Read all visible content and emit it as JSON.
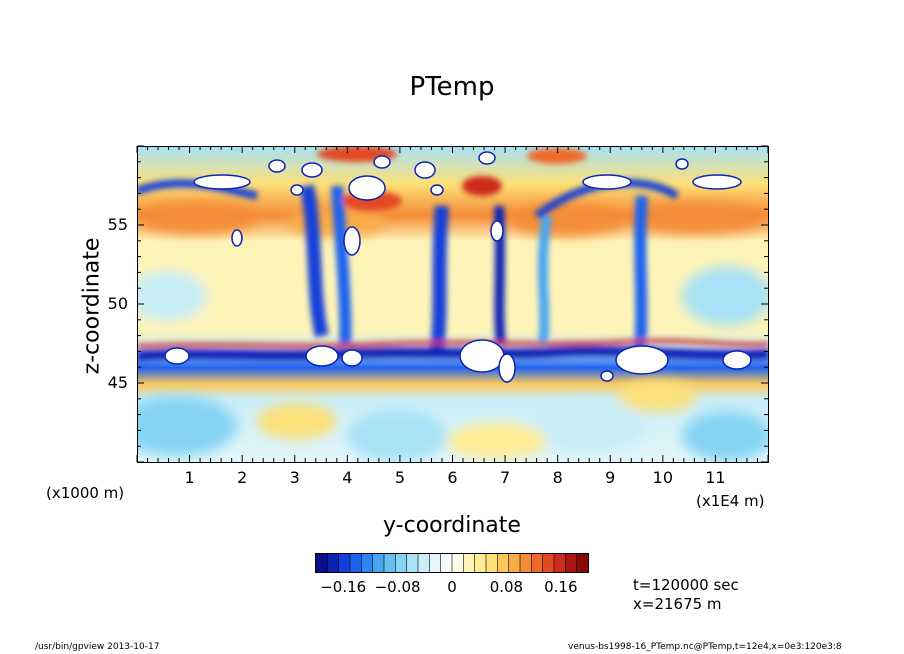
{
  "chart_data": {
    "type": "heatmap",
    "title": "PTemp",
    "xlabel": "y-coordinate",
    "ylabel": "z-coordinate",
    "x_unit_left": "(x1000 m)",
    "x_unit_right": "(x1E4 m)",
    "x_ticks": [
      "1",
      "2",
      "3",
      "4",
      "5",
      "6",
      "7",
      "8",
      "9",
      "10",
      "11"
    ],
    "x_tick_values": [
      1,
      2,
      3,
      4,
      5,
      6,
      7,
      8,
      9,
      10,
      11
    ],
    "y_ticks": [
      "45",
      "50",
      "55"
    ],
    "y_tick_values": [
      45,
      50,
      55
    ],
    "xlim": [
      0,
      12
    ],
    "ylim": [
      40,
      60
    ],
    "colorbar": {
      "ticks": [
        "−0.16",
        "−0.08",
        "0",
        "0.08",
        "0.16"
      ],
      "tick_values": [
        -0.16,
        -0.08,
        0,
        0.08,
        0.16
      ],
      "range": [
        -0.2,
        0.2
      ],
      "colors": [
        "#0a0f8a",
        "#0b24b4",
        "#1240d8",
        "#1f62ee",
        "#2f86f2",
        "#46a6f2",
        "#64c0f2",
        "#86d4f4",
        "#a8e2f6",
        "#c8eef8",
        "#e4f6fa",
        "#f6fbfc",
        "#fffbe6",
        "#fff4b8",
        "#ffec94",
        "#fde078",
        "#fbc85c",
        "#f8ac46",
        "#f48c38",
        "#ee6a2c",
        "#e24a24",
        "#cc2c1c",
        "#aa1614",
        "#880808"
      ]
    },
    "bands": [
      {
        "z_min": 56,
        "z_max": 60,
        "description": "mixed warm/cold with white blobs"
      },
      {
        "z_min": 54,
        "z_max": 56,
        "value": 0.12
      },
      {
        "z_min": 47.5,
        "z_max": 54,
        "value": 0.04
      },
      {
        "z_min": 46,
        "z_max": 47.5,
        "value": -0.16
      },
      {
        "z_min": 44.5,
        "z_max": 46,
        "value": 0.1
      },
      {
        "z_min": 40,
        "z_max": 44.5,
        "value": 0.0
      }
    ]
  },
  "info": {
    "time": "t=120000 sec",
    "position": "x=21675 m"
  },
  "footer": {
    "left": "/usr/bin/gpview   2013-10-17",
    "right": "venus-bs1998-16_PTemp.nc@PTemp,t=12e4,x=0e3:120e3:8"
  }
}
